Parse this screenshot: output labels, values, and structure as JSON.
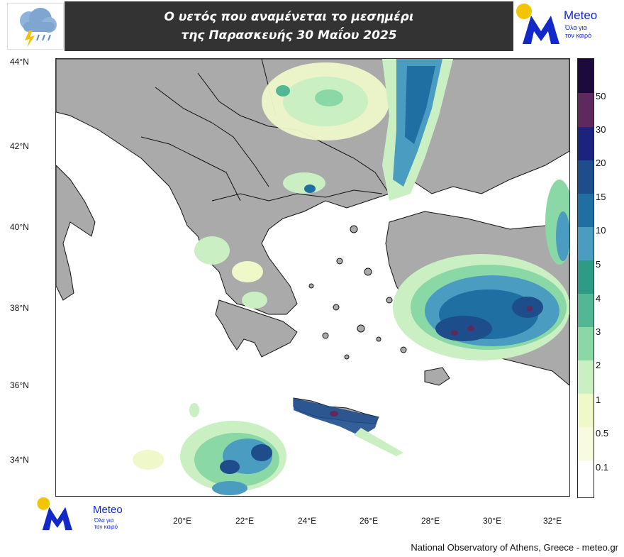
{
  "header": {
    "title_line1": "Ο υετός που αναμένεται το μεσημέρι",
    "title_line2": "της Παρασκευής 30 Μαΐου 2025",
    "left_icon": "rain-cloud-lightning-icon"
  },
  "brand": {
    "name": "Meteo",
    "tagline_line1": "Όλα για",
    "tagline_line2": "τον καιρό",
    "icon": "meteo-m-logo-icon"
  },
  "map": {
    "lat_labels": [
      "44°N",
      "42°N",
      "40°N",
      "38°N",
      "36°N",
      "34°N"
    ],
    "lon_labels": [
      "20°E",
      "22°E",
      "24°E",
      "26°E",
      "28°E",
      "30°E",
      "32°E"
    ],
    "land_color": "#aaaaaa",
    "sea_color": "#ffffff",
    "border_color": "#111111"
  },
  "colorbar": {
    "labels": [
      "50",
      "30",
      "20",
      "15",
      "10",
      "5",
      "4",
      "3",
      "2",
      "1",
      "0.5",
      "0.1"
    ],
    "colors": [
      "#1c0a3c",
      "#5e2a5e",
      "#1a237e",
      "#1e4d8c",
      "#1f6fa3",
      "#4a9cc0",
      "#2e9b87",
      "#52b795",
      "#8ad8a6",
      "#c9efc2",
      "#eef8c9",
      "#f8fbe0",
      "#ffffff"
    ]
  },
  "footer": {
    "credit": "National Observatory of Athens, Greece - meteo.gr"
  }
}
